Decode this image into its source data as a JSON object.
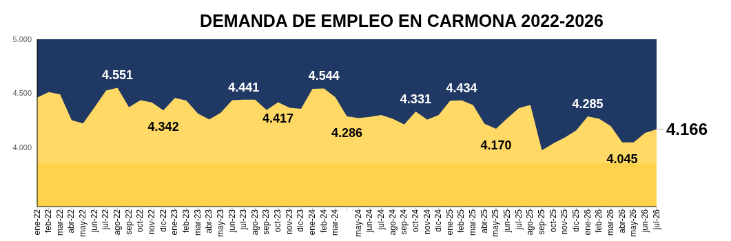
{
  "chart_data": {
    "type": "area",
    "title": "DEMANDA DE EMPLEO EN CARMONA 2022-2026",
    "categories": [
      "ene-22",
      "feb-22",
      "mar-22",
      "abr-22",
      "may-22",
      "jun-22",
      "jul-22",
      "ago-22",
      "sep-22",
      "oct-22",
      "nov-22",
      "dic-22",
      "ene-23",
      "feb-23",
      "mar-23",
      "abr-23",
      "may-23",
      "jun-23",
      "jul-23",
      "ago-23",
      "sep-23",
      "oct-23",
      "nov-23",
      "dic-23",
      "ene-24",
      "feb-24",
      "mar-24",
      null,
      "may-24",
      "jun-24",
      "jul-24",
      "ago-24",
      "sep-24",
      "oct-24",
      "nov-24",
      "dic-24",
      "ene-25",
      "feb-25",
      "mar-25",
      "abr-25",
      "may-25",
      "jun-25",
      "jul-25",
      "ago-25",
      "sep-25",
      "oct-25",
      "nov-25",
      "dic-25",
      "ene-26",
      "feb-26",
      "mar-26",
      "abr-26",
      "may-26",
      "jun-26",
      "jul-26"
    ],
    "values": [
      4460,
      4510,
      4490,
      4250,
      4220,
      4370,
      4525,
      4551,
      4370,
      4436,
      4415,
      4342,
      4457,
      4432,
      4313,
      4257,
      4319,
      4436,
      4441,
      4440,
      4345,
      4417,
      4366,
      4355,
      4540,
      4544,
      4462,
      4286,
      4270,
      4281,
      4298,
      4264,
      4210,
      4331,
      4255,
      4298,
      4430,
      4434,
      4391,
      4217,
      4170,
      4270,
      4362,
      4391,
      3972,
      4036,
      4089,
      4157,
      4285,
      4264,
      4196,
      4045,
      4045,
      4132,
      4166
    ],
    "value_labels": [
      null,
      null,
      null,
      null,
      null,
      null,
      null,
      "4.551",
      null,
      null,
      null,
      "4.342",
      null,
      null,
      null,
      null,
      null,
      null,
      "4.441",
      null,
      null,
      "4.417",
      null,
      null,
      null,
      "4.544",
      null,
      "4.286",
      null,
      null,
      null,
      null,
      null,
      "4.331",
      null,
      null,
      null,
      "4.434",
      null,
      null,
      "4.170",
      null,
      null,
      null,
      null,
      null,
      null,
      null,
      "4.285",
      null,
      null,
      "4.045",
      null,
      null,
      "4.166"
    ],
    "color": "#ffd966",
    "ylim": [
      3450,
      5000
    ],
    "yticks": [
      {
        "value": 4000,
        "label": "4.000"
      },
      {
        "value": 4500,
        "label": "4.500"
      },
      {
        "value": 5000,
        "label": "5.000"
      }
    ],
    "bands": [
      {
        "axis": "y",
        "from": 3450,
        "to": 3850,
        "color": "#ffd24d"
      }
    ],
    "grid": false
  }
}
